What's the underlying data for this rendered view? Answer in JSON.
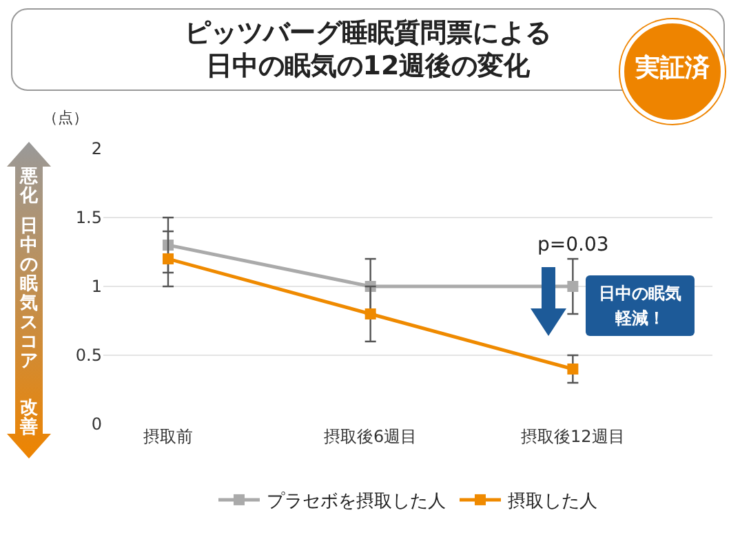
{
  "chart_data": {
    "type": "line",
    "title": "ピッツバーグ睡眠質問票による日中の眠気の12週後の変化",
    "ylabel": "（点）",
    "categories": [
      "摂取前",
      "摂取後6週目",
      "摂取後12週目"
    ],
    "series": [
      {
        "name": "プラセボを摂取した人",
        "color": "#aaaaaa",
        "values": [
          1.3,
          1.0,
          1.0
        ],
        "errors": [
          0.2,
          0.2,
          0.2
        ]
      },
      {
        "name": "摂取した人",
        "color": "#ef8a00",
        "values": [
          1.2,
          0.8,
          0.4
        ],
        "errors": [
          0.2,
          0.2,
          0.1
        ]
      }
    ],
    "ylim": [
      0,
      2
    ],
    "yticks": [
      0,
      0.5,
      1,
      1.5,
      2
    ],
    "grid": "y",
    "legend": "bottom",
    "marker": "square",
    "line_style": "solid",
    "annotations": [
      "実証済",
      "悪化",
      "日中の眠気スコア",
      "改善",
      {
        "text": "p=0.03",
        "x": "摂取後12週目",
        "y": 1.2
      },
      "日中の眠気軽減！"
    ]
  }
}
